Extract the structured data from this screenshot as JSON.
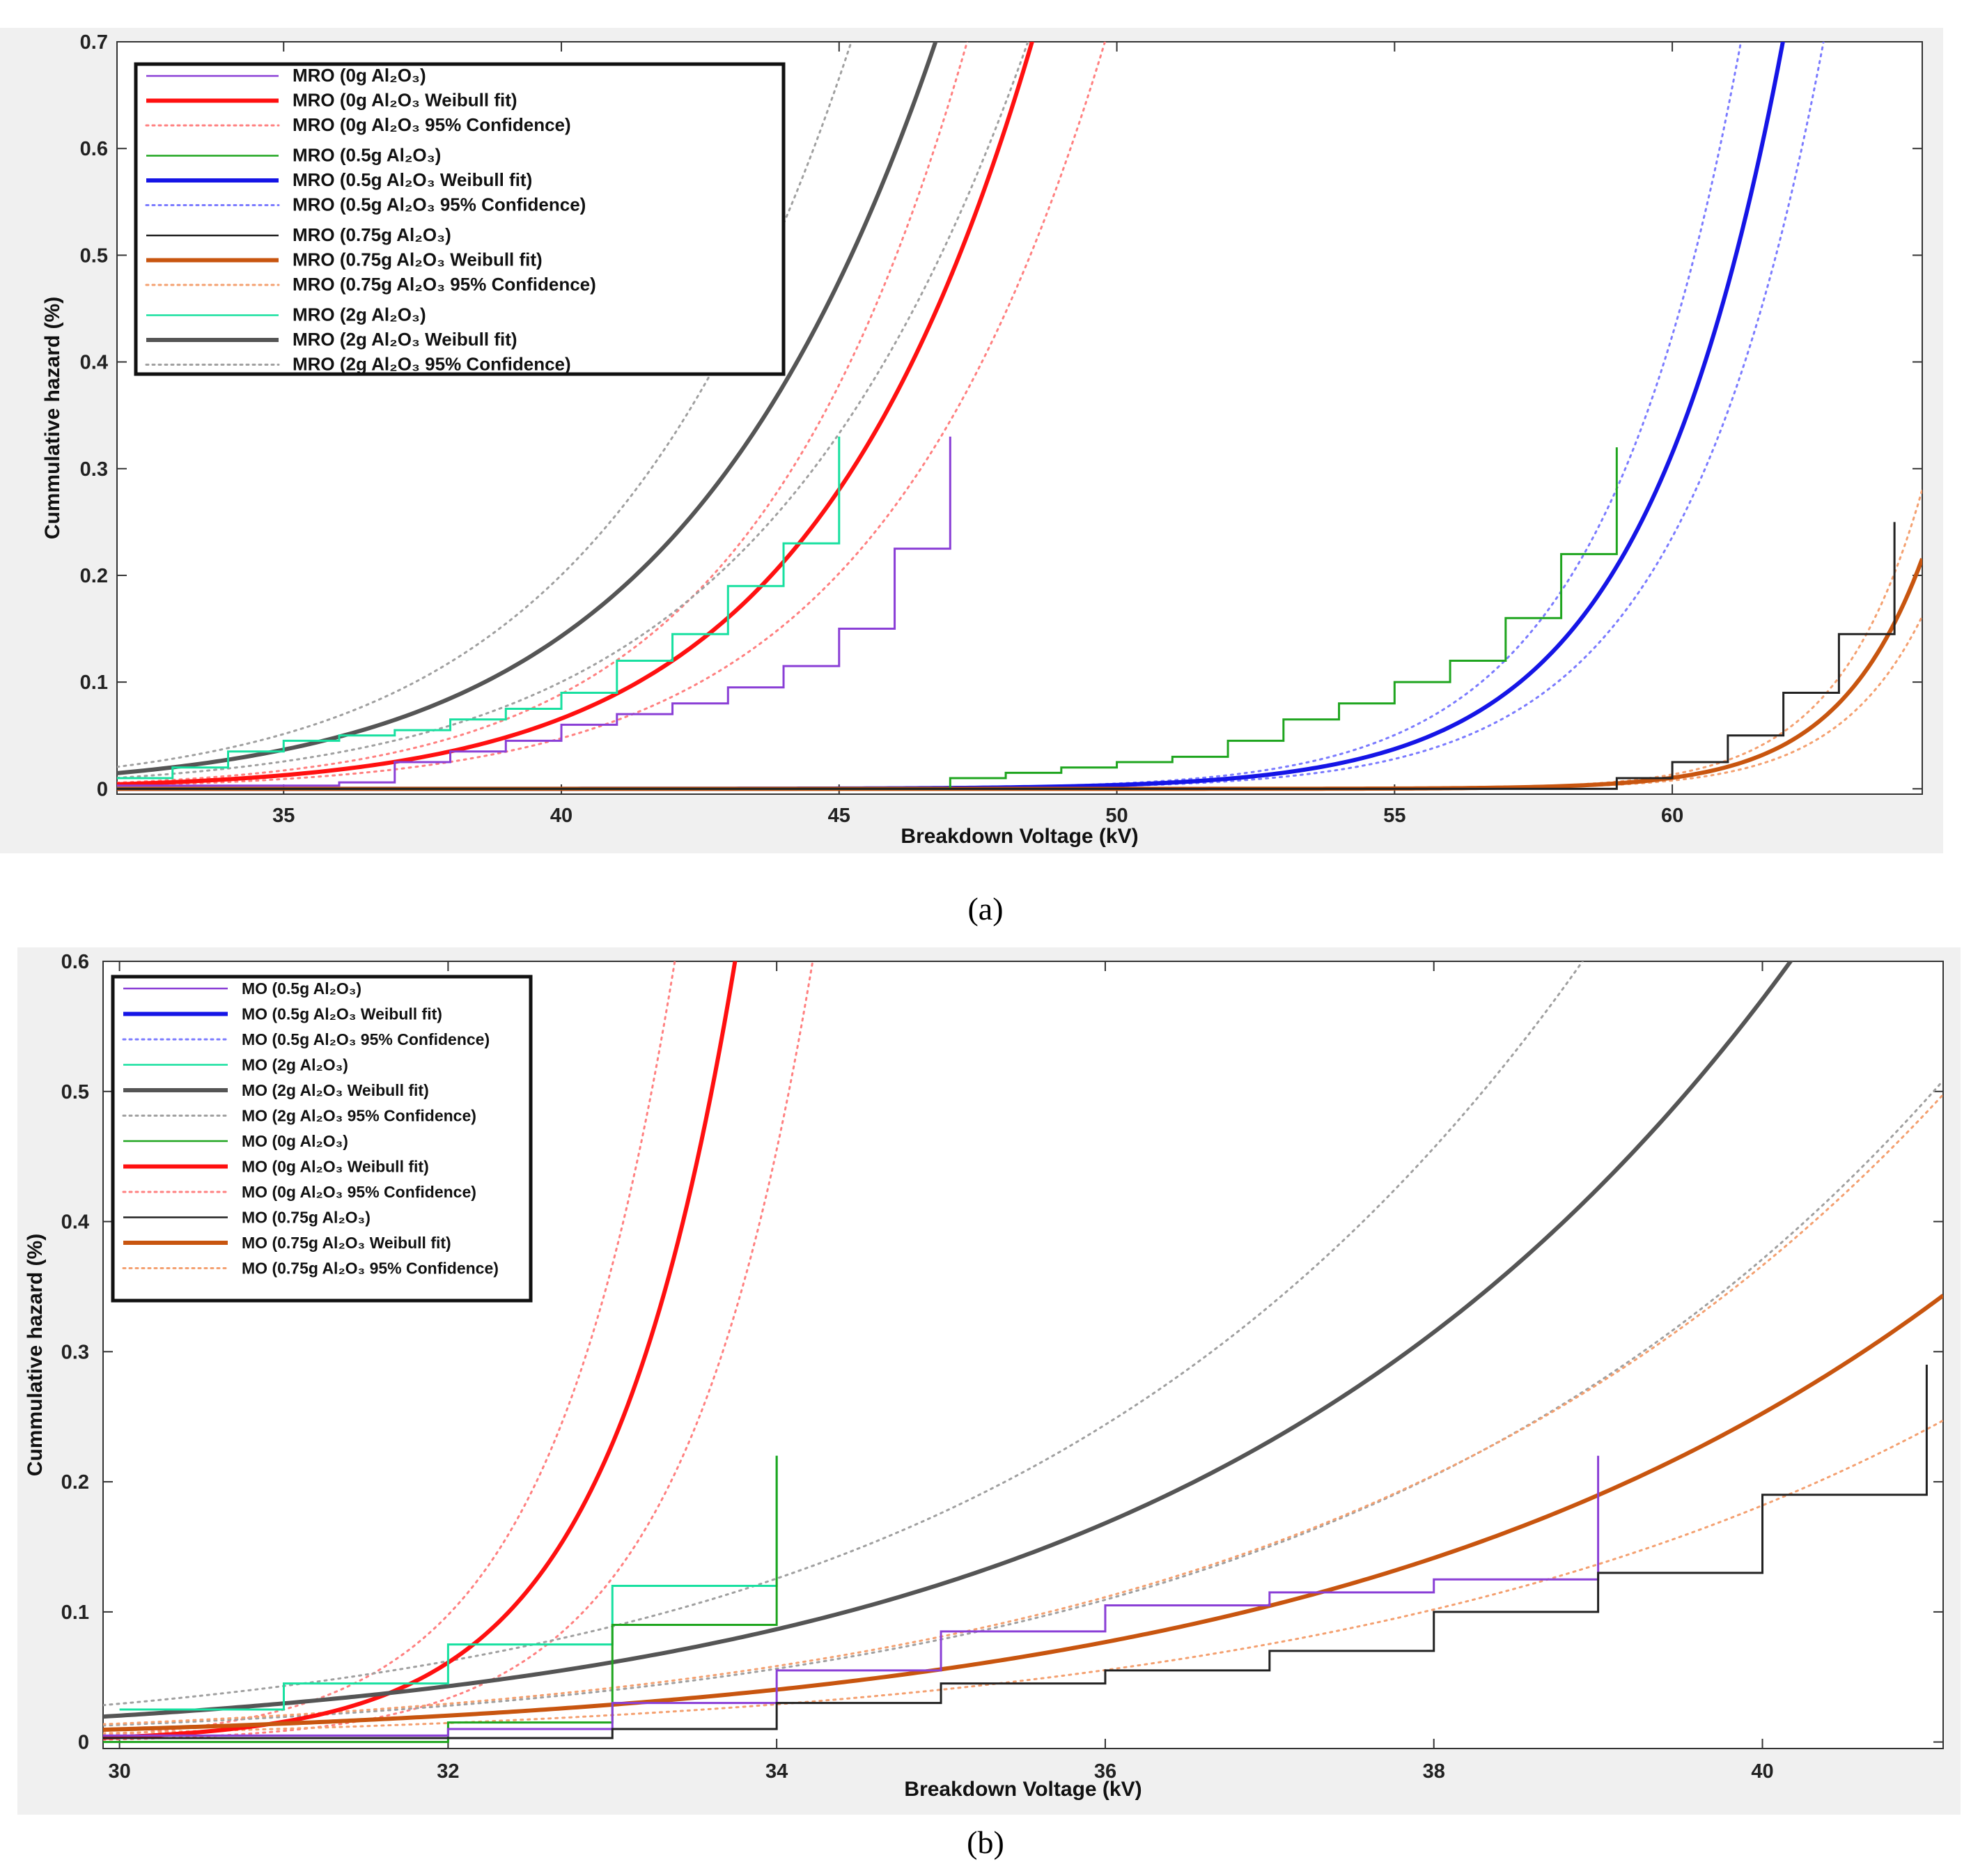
{
  "captions": [
    "(a)",
    "(b)"
  ],
  "chart_data": [
    {
      "id": "a",
      "type": "line",
      "xlabel": "Breakdown Voltage (kV)",
      "ylabel": "Cummulative hazard (%)",
      "xlim": [
        32,
        64.5
      ],
      "ylim": [
        -0.005,
        0.7
      ],
      "xticks": [
        35,
        40,
        45,
        50,
        55,
        60
      ],
      "yticks": [
        0,
        0.1,
        0.2,
        0.3,
        0.4,
        0.5,
        0.6,
        0.7
      ],
      "ytick_labels": [
        "0",
        "0.1",
        "0.2",
        "0.3",
        "0.4",
        "0.5",
        "0.6",
        "0.7"
      ],
      "legend": [
        {
          "label": "MRO (0g Al₂O₃)",
          "color": "#8a3fd6",
          "style": "thin"
        },
        {
          "label": "MRO (0g Al₂O₃ Weibull fit)",
          "color": "#ff1010",
          "style": "thick"
        },
        {
          "label": "MRO (0g Al₂O₃ 95% Confidence)",
          "color": "#ff8080",
          "style": "dotted"
        },
        {
          "label": "MRO (0.5g Al₂O₃)",
          "color": "#1fa51f",
          "style": "thin"
        },
        {
          "label": "MRO (0.5g Al₂O₃ Weibull fit)",
          "color": "#1515e6",
          "style": "thick"
        },
        {
          "label": "MRO (0.5g Al₂O₃ 95% Confidence)",
          "color": "#7b7bff",
          "style": "dotted"
        },
        {
          "label": "MRO (0.75g Al₂O₃)",
          "color": "#222222",
          "style": "thin"
        },
        {
          "label": "MRO (0.75g Al₂O₃ Weibull fit)",
          "color": "#c8550f",
          "style": "thick"
        },
        {
          "label": "MRO (0.75g Al₂O₃ 95% Confidence)",
          "color": "#f4a070",
          "style": "dotted"
        },
        {
          "label": "MRO (2g Al₂O₃)",
          "color": "#18e0a0",
          "style": "thin"
        },
        {
          "label": "MRO (2g Al₂O₃ Weibull fit)",
          "color": "#555555",
          "style": "thick"
        },
        {
          "label": "MRO (2g Al₂O₃ 95% Confidence)",
          "color": "#a0a0a0",
          "style": "dotted"
        }
      ],
      "series": [
        {
          "name": "MRO (0g Al₂O₃)",
          "kind": "step",
          "color": "#8a3fd6",
          "x": [
            32,
            36,
            37,
            38,
            39,
            40,
            41,
            42,
            43,
            44,
            45,
            46,
            47
          ],
          "y": [
            0.003,
            0.006,
            0.025,
            0.035,
            0.045,
            0.06,
            0.07,
            0.08,
            0.095,
            0.115,
            0.15,
            0.225,
            0.33
          ]
        },
        {
          "name": "MRO (0.5g Al₂O₃)",
          "kind": "step",
          "color": "#1fa51f",
          "x": [
            32,
            47,
            48,
            49,
            50,
            51,
            52,
            53,
            54,
            55,
            56,
            57,
            58,
            59
          ],
          "y": [
            0.0,
            0.01,
            0.015,
            0.02,
            0.025,
            0.03,
            0.045,
            0.065,
            0.08,
            0.1,
            0.12,
            0.16,
            0.22,
            0.32
          ]
        },
        {
          "name": "MRO (0.75g Al₂O₃)",
          "kind": "step",
          "color": "#222222",
          "x": [
            32,
            59,
            60,
            61,
            62,
            63,
            64
          ],
          "y": [
            0.0,
            0.01,
            0.025,
            0.05,
            0.09,
            0.145,
            0.25
          ]
        },
        {
          "name": "MRO (2g Al₂O₃)",
          "kind": "step",
          "color": "#18e0a0",
          "x": [
            32,
            33,
            34,
            35,
            36,
            37,
            38,
            39,
            40,
            41,
            42,
            43,
            44,
            45
          ],
          "y": [
            0.01,
            0.02,
            0.035,
            0.045,
            0.05,
            0.055,
            0.065,
            0.075,
            0.09,
            0.12,
            0.145,
            0.19,
            0.23,
            0.33
          ]
        },
        {
          "name": "MRO (0g Al₂O₃ Weibull fit)",
          "kind": "fit",
          "color": "#ff1010",
          "width": 6,
          "a": 49.9,
          "b": 12.3,
          "scale": 1.0
        },
        {
          "name": "MRO (0g Al₂O₃ 95% Confidence) upper",
          "kind": "fit",
          "color": "#ff8080",
          "dash": "3,7",
          "width": 3,
          "a": 49.9,
          "b": 12.3,
          "scale": 1.35
        },
        {
          "name": "MRO (0g Al₂O₃ 95% Confidence) lower",
          "kind": "fit",
          "color": "#ff8080",
          "dash": "3,7",
          "width": 3,
          "a": 49.9,
          "b": 12.3,
          "scale": 0.72
        },
        {
          "name": "MRO (0.5g Al₂O₃ Weibull fit)",
          "kind": "fit",
          "color": "#1515e6",
          "width": 6,
          "a": 62.9,
          "b": 24.5,
          "scale": 1.0
        },
        {
          "name": "MRO (0.5g Al₂O₃ 95% Confidence) upper",
          "kind": "fit",
          "color": "#7b7bff",
          "dash": "3,7",
          "width": 3,
          "a": 62.9,
          "b": 24.5,
          "scale": 1.35
        },
        {
          "name": "MRO (0.5g Al₂O₃ 95% Confidence) lower",
          "kind": "fit",
          "color": "#7b7bff",
          "dash": "3,7",
          "width": 3,
          "a": 62.9,
          "b": 24.5,
          "scale": 0.75
        },
        {
          "name": "MRO (0.75g Al₂O₃ Weibull fit)",
          "kind": "fit",
          "color": "#c8550f",
          "width": 6,
          "a": 66.9,
          "b": 42.0,
          "scale": 1.0
        },
        {
          "name": "MRO (0.75g Al₂O₃ 95% Confidence) upper",
          "kind": "fit",
          "color": "#f4a070",
          "dash": "3,7",
          "width": 3,
          "a": 66.9,
          "b": 42.0,
          "scale": 1.3
        },
        {
          "name": "MRO (0.75g Al₂O₃ 95% Confidence) lower",
          "kind": "fit",
          "color": "#f4a070",
          "dash": "3,7",
          "width": 3,
          "a": 66.9,
          "b": 42.0,
          "scale": 0.75
        },
        {
          "name": "MRO (2g Al₂O₃ Weibull fit)",
          "kind": "fit",
          "color": "#555555",
          "width": 6,
          "a": 48.4,
          "b": 10.2,
          "scale": 1.0
        },
        {
          "name": "MRO (2g Al₂O₃ 95% Confidence) upper",
          "kind": "fit",
          "color": "#a0a0a0",
          "dash": "3,7",
          "width": 3,
          "a": 48.4,
          "b": 10.2,
          "scale": 1.4
        },
        {
          "name": "MRO (2g Al₂O₃ 95% Confidence) lower",
          "kind": "fit",
          "color": "#a0a0a0",
          "dash": "3,7",
          "width": 3,
          "a": 48.4,
          "b": 10.2,
          "scale": 0.7
        }
      ]
    },
    {
      "id": "b",
      "type": "line",
      "xlabel": "Breakdown Voltage (kV)",
      "ylabel": "Cummulative hazard (%)",
      "xlim": [
        29.9,
        41.1
      ],
      "ylim": [
        -0.005,
        0.6
      ],
      "xticks": [
        30,
        32,
        34,
        36,
        38,
        40
      ],
      "yticks": [
        0,
        0.1,
        0.2,
        0.3,
        0.4,
        0.5,
        0.6
      ],
      "ytick_labels": [
        "0",
        "0.1",
        "0.2",
        "0.3",
        "0.4",
        "0.5",
        "0.6"
      ],
      "legend": [
        {
          "label": "MO (0.5g Al₂O₃)",
          "color": "#8a3fd6",
          "style": "thin"
        },
        {
          "label": "MO (0.5g Al₂O₃ Weibull fit)",
          "color": "#1515e6",
          "style": "thick"
        },
        {
          "label": "MO (0.5g Al₂O₃ 95% Confidence)",
          "color": "#7b7bff",
          "style": "dotted"
        },
        {
          "label": "MO (2g Al₂O₃)",
          "color": "#18e0a0",
          "style": "thin"
        },
        {
          "label": "MO (2g Al₂O₃ Weibull fit)",
          "color": "#555555",
          "style": "thick"
        },
        {
          "label": "MO (2g Al₂O₃ 95% Confidence)",
          "color": "#a0a0a0",
          "style": "dotted"
        },
        {
          "label": "MO (0g Al₂O₃)",
          "color": "#1fa51f",
          "style": "thin"
        },
        {
          "label": "MO (0g Al₂O₃ Weibull fit)",
          "color": "#ff1010",
          "style": "thick"
        },
        {
          "label": "MO (0g Al₂O₃ 95% Confidence)",
          "color": "#ff8080",
          "style": "dotted"
        },
        {
          "label": "MO (0.75g Al₂O₃)",
          "color": "#222222",
          "style": "thin"
        },
        {
          "label": "MO (0.75g Al₂O₃ Weibull fit)",
          "color": "#c8550f",
          "style": "thick"
        },
        {
          "label": "MO (0.75g Al₂O₃ 95% Confidence)",
          "color": "#f4a070",
          "style": "dotted"
        }
      ],
      "series": [
        {
          "name": "MO (2g Al₂O₃)",
          "kind": "step",
          "color": "#18e0a0",
          "x": [
            30,
            31,
            32,
            33,
            34
          ],
          "y": [
            0.025,
            0.045,
            0.075,
            0.12,
            0.22
          ]
        },
        {
          "name": "MO (0g Al₂O₃)",
          "kind": "step",
          "color": "#1fa51f",
          "x": [
            29.9,
            32,
            33,
            34
          ],
          "y": [
            0.0,
            0.015,
            0.09,
            0.22
          ]
        },
        {
          "name": "MO (0.5g Al₂O₃)",
          "kind": "step",
          "color": "#8a3fd6",
          "x": [
            29.9,
            32,
            33,
            34,
            35,
            36,
            37,
            38,
            39
          ],
          "y": [
            0.005,
            0.01,
            0.03,
            0.055,
            0.085,
            0.105,
            0.115,
            0.125,
            0.22
          ]
        },
        {
          "name": "MO (0.75g Al₂O₃)",
          "kind": "step",
          "color": "#222222",
          "x": [
            29.9,
            33,
            34,
            35,
            36,
            37,
            38,
            39,
            40,
            41
          ],
          "y": [
            0.003,
            0.01,
            0.03,
            0.045,
            0.055,
            0.07,
            0.1,
            0.13,
            0.19,
            0.29
          ]
        },
        {
          "name": "MO (0g Al₂O₃ Weibull fit)",
          "kind": "fit",
          "color": "#ff1010",
          "width": 6,
          "a": 34.15,
          "b": 43.0,
          "scale": 1.0
        },
        {
          "name": "MO (0g Al₂O₃ 95% Confidence) upper",
          "kind": "fit",
          "color": "#ff8080",
          "dash": "3,7",
          "width": 3,
          "a": 34.15,
          "b": 43.0,
          "scale": 1.6
        },
        {
          "name": "MO (0g Al₂O₃ 95% Confidence) lower",
          "kind": "fit",
          "color": "#ff8080",
          "dash": "3,7",
          "width": 3,
          "a": 34.15,
          "b": 43.0,
          "scale": 0.55
        },
        {
          "name": "MO (2g Al₂O₃ Weibull fit)",
          "kind": "fit",
          "color": "#555555",
          "width": 6,
          "a": 41.98,
          "b": 11.6,
          "scale": 1.0
        },
        {
          "name": "MO (2g Al₂O₃ 95% Confidence) upper",
          "kind": "fit",
          "color": "#a0a0a0",
          "dash": "3,7",
          "width": 3,
          "a": 41.98,
          "b": 11.6,
          "scale": 1.45
        },
        {
          "name": "MO (2g Al₂O₃ 95% Confidence) lower",
          "kind": "fit",
          "color": "#a0a0a0",
          "dash": "3,7",
          "width": 3,
          "a": 41.98,
          "b": 11.6,
          "scale": 0.65
        },
        {
          "name": "MO (0.75g Al₂O₃ Weibull fit)",
          "kind": "fit",
          "color": "#c8550f",
          "width": 6,
          "a": 45.18,
          "b": 11.3,
          "scale": 1.0
        },
        {
          "name": "MO (0.75g Al₂O₃ 95% Confidence) upper",
          "kind": "fit",
          "color": "#f4a070",
          "dash": "3,7",
          "width": 3,
          "a": 45.18,
          "b": 11.3,
          "scale": 1.45
        },
        {
          "name": "MO (0.75g Al₂O₃ 95% Confidence) lower",
          "kind": "fit",
          "color": "#f4a070",
          "dash": "3,7",
          "width": 3,
          "a": 45.18,
          "b": 11.3,
          "scale": 0.72
        }
      ]
    }
  ]
}
